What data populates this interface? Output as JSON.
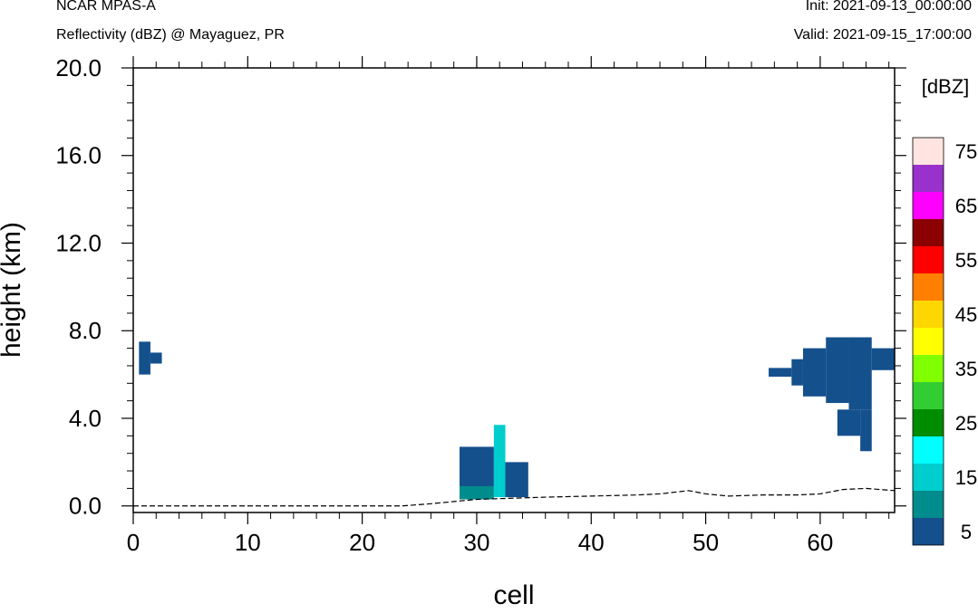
{
  "header": {
    "left_title": "NCAR MPAS-A",
    "left_subtitle": "Reflectivity (dBZ) @ Mayaguez, PR",
    "right_init": "Init: 2021-09-13_00:00:00",
    "right_valid": "Valid: 2021-09-15_17:00:00"
  },
  "chart_data": {
    "type": "heatmap",
    "title": "Reflectivity (dBZ) @ Mayaguez, PR",
    "xlabel": "cell",
    "ylabel": "height (km)",
    "xlim": [
      0,
      66.5
    ],
    "ylim": [
      -0.3,
      20.0
    ],
    "x_ticks": [
      0,
      10,
      20,
      30,
      40,
      50,
      60
    ],
    "x_tick_labels": [
      "0",
      "10",
      "20",
      "30",
      "40",
      "50",
      "60"
    ],
    "y_ticks": [
      0,
      4,
      8,
      12,
      16,
      20
    ],
    "y_tick_labels": [
      "0.0",
      "4.0",
      "8.0",
      "12.0",
      "16.0",
      "20.0"
    ],
    "colorbar": {
      "units": "[dBZ]",
      "levels": [
        5,
        10,
        15,
        20,
        25,
        30,
        35,
        40,
        45,
        50,
        55,
        60,
        65,
        70,
        75,
        80
      ],
      "colors": [
        "#14508c",
        "#008c8c",
        "#00cdcd",
        "#00ffff",
        "#008c00",
        "#32cd32",
        "#7fff00",
        "#ffff00",
        "#ffd700",
        "#ff7f00",
        "#ff0000",
        "#8b0000",
        "#ff00ff",
        "#9932cc",
        "#ffe4e1"
      ],
      "labels": [
        "5",
        "15",
        "25",
        "35",
        "45",
        "55",
        "65",
        "75"
      ]
    },
    "cells": [
      {
        "x": [
          0.5,
          1.5
        ],
        "y": [
          6.0,
          7.5
        ],
        "dbz": 5
      },
      {
        "x": [
          1.5,
          2.5
        ],
        "y": [
          6.5,
          7.0
        ],
        "dbz": 5
      },
      {
        "x": [
          28.5,
          31.5
        ],
        "y": [
          0.9,
          2.7
        ],
        "dbz": 5
      },
      {
        "x": [
          28.5,
          31.5
        ],
        "y": [
          0.3,
          0.9
        ],
        "dbz": 10
      },
      {
        "x": [
          31.5,
          32.5
        ],
        "y": [
          0.4,
          3.7
        ],
        "dbz": 15
      },
      {
        "x": [
          32.5,
          34.5
        ],
        "y": [
          0.4,
          2.0
        ],
        "dbz": 5
      },
      {
        "x": [
          55.5,
          57.5
        ],
        "y": [
          5.9,
          6.3
        ],
        "dbz": 5
      },
      {
        "x": [
          57.5,
          58.5
        ],
        "y": [
          5.5,
          6.7
        ],
        "dbz": 5
      },
      {
        "x": [
          58.5,
          60.5
        ],
        "y": [
          5.0,
          7.2
        ],
        "dbz": 5
      },
      {
        "x": [
          60.5,
          62.5
        ],
        "y": [
          4.7,
          7.7
        ],
        "dbz": 5
      },
      {
        "x": [
          62.5,
          64.5
        ],
        "y": [
          4.4,
          7.7
        ],
        "dbz": 5
      },
      {
        "x": [
          64.5,
          66.5
        ],
        "y": [
          6.2,
          7.2
        ],
        "dbz": 5
      },
      {
        "x": [
          61.5,
          63.5
        ],
        "y": [
          3.2,
          4.4
        ],
        "dbz": 5
      },
      {
        "x": [
          63.5,
          64.5
        ],
        "y": [
          2.5,
          4.4
        ],
        "dbz": 5
      }
    ],
    "terrain": {
      "x": [
        0,
        10,
        20,
        23.5,
        26,
        28,
        30,
        33,
        36,
        40,
        44,
        46,
        48.5,
        50,
        52,
        55,
        58,
        60,
        62,
        64,
        66.5
      ],
      "y": [
        0.0,
        0.0,
        0.0,
        0.0,
        0.1,
        0.2,
        0.3,
        0.35,
        0.4,
        0.45,
        0.5,
        0.55,
        0.7,
        0.55,
        0.45,
        0.5,
        0.5,
        0.55,
        0.75,
        0.8,
        0.7
      ]
    }
  }
}
